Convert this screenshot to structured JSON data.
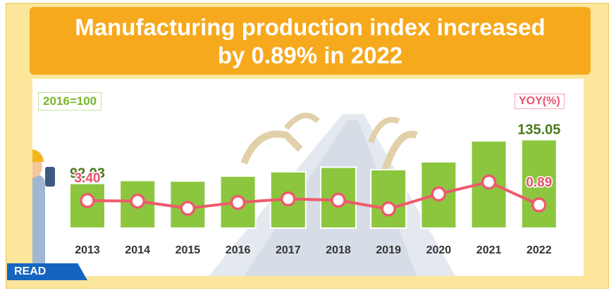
{
  "title": {
    "line1": "Manufacturing production index increased",
    "line2": "by 0.89% in 2022"
  },
  "labels": {
    "base": "2016=100",
    "yoy": "YOY(%)",
    "read": "READ"
  },
  "colors": {
    "bar": "#8cc63f",
    "line": "#ee5a6c",
    "index_text": "#4a7a1c",
    "yoy_text": "#e8516a",
    "year_text": "#333333",
    "title_bg": "#f6a91c",
    "frame_bg": "#fbe69c",
    "read_bg": "#1565c0"
  },
  "chart_data": {
    "type": "bar",
    "title": "Manufacturing production index increased by 0.89% in 2022",
    "categories": [
      "2013",
      "2014",
      "2015",
      "2016",
      "2017",
      "2018",
      "2019",
      "2020",
      "2021",
      "2022"
    ],
    "series": [
      {
        "name": "Manufacturing production index (2016=100)",
        "type": "bar",
        "values": [
          92.93,
          95.8,
          95.3,
          100.0,
          104.2,
          108.6,
          106.2,
          113.8,
          133.9,
          135.05
        ]
      },
      {
        "name": "YOY(%)",
        "type": "line",
        "values": [
          3.4,
          3.1,
          -1.1,
          2.3,
          4.4,
          3.6,
          -1.5,
          7.3,
          14.3,
          0.89
        ]
      }
    ],
    "data_labels": [
      {
        "series": "Manufacturing production index (2016=100)",
        "category": "2013",
        "text": "92.93"
      },
      {
        "series": "Manufacturing production index (2016=100)",
        "category": "2022",
        "text": "135.05"
      },
      {
        "series": "YOY(%)",
        "category": "2013",
        "text": "3.40"
      },
      {
        "series": "YOY(%)",
        "category": "2022",
        "text": "0.89"
      }
    ],
    "xlabel": "",
    "ylabel": "",
    "legend": "none"
  }
}
